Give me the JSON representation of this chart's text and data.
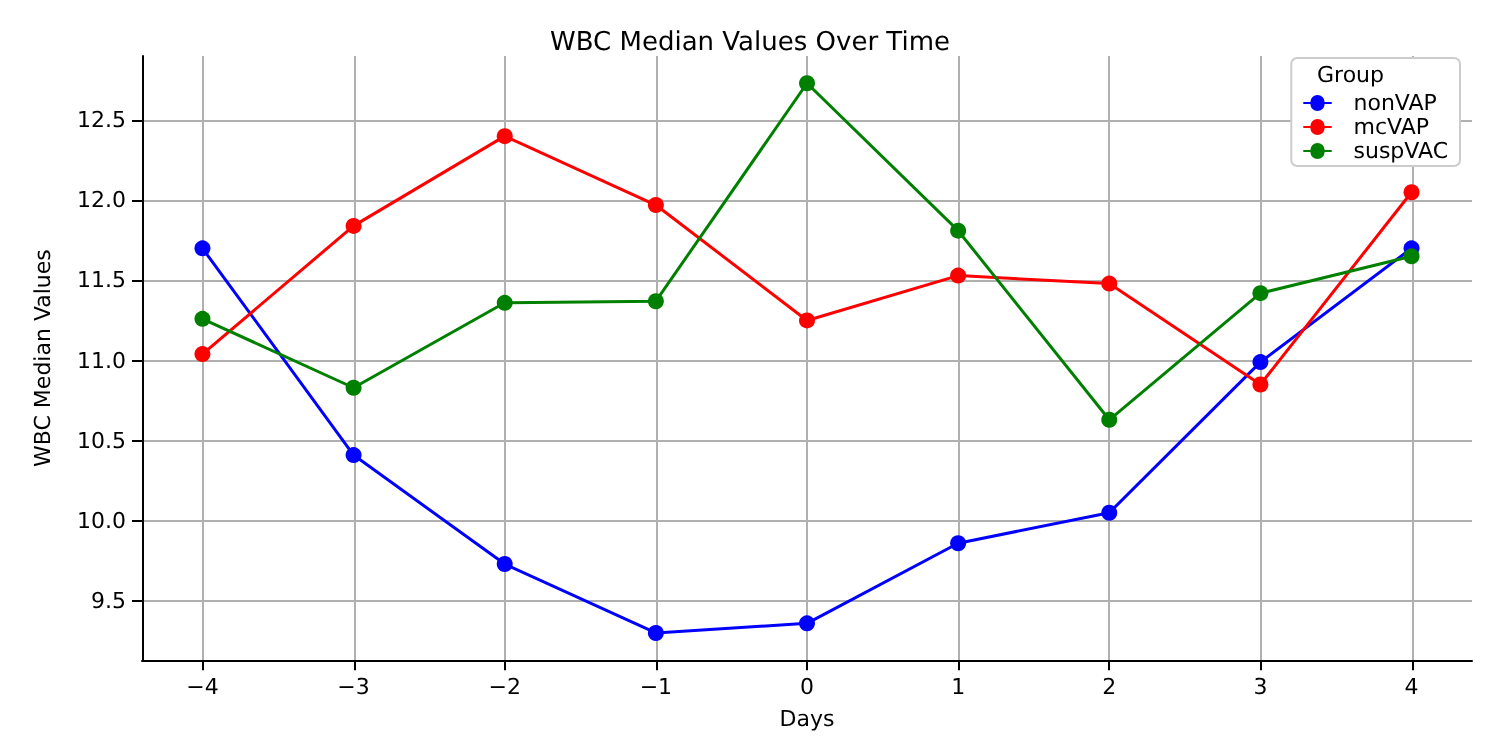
{
  "chart_data": {
    "type": "line",
    "title": "WBC Median Values Over Time",
    "xlabel": "Days",
    "ylabel": "WBC Median Values",
    "legend_title": "Group",
    "x": [
      -4,
      -3,
      -2,
      -1,
      0,
      1,
      2,
      3,
      4
    ],
    "series": [
      {
        "name": "nonVAP",
        "color": "#0000ff",
        "values": [
          11.7,
          10.41,
          9.73,
          9.3,
          9.36,
          9.86,
          10.05,
          10.99,
          11.7
        ]
      },
      {
        "name": "mcVAP",
        "color": "#ff0000",
        "values": [
          11.04,
          11.84,
          12.4,
          11.97,
          11.25,
          11.53,
          11.48,
          10.85,
          12.05
        ]
      },
      {
        "name": "suspVAC",
        "color": "#008000",
        "values": [
          11.26,
          10.83,
          11.36,
          11.37,
          12.73,
          11.81,
          10.63,
          11.42,
          11.65
        ]
      }
    ],
    "xlim": [
      -4.4,
      4.4
    ],
    "xticks": [
      -4,
      -3,
      -2,
      -1,
      0,
      1,
      2,
      3,
      4
    ],
    "ylim": [
      9.13,
      12.9
    ],
    "yticks": [
      9.5,
      {
        "value": 10,
        "label": "10.0"
      },
      10.5,
      {
        "value": 11,
        "label": "11.0"
      },
      11.5,
      {
        "value": 12,
        "label": "12.0"
      },
      12.5
    ],
    "grid": true,
    "legend": "top right",
    "marker": "circle",
    "line_style": "solid"
  }
}
